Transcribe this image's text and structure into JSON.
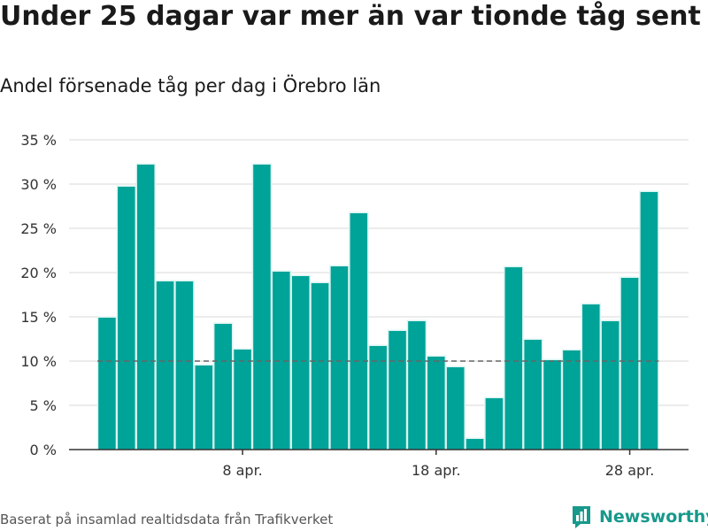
{
  "title": "Under 25 dagar var mer än var tionde tåg sent",
  "subtitle": "Andel försenade tåg per dag i Örebro län",
  "footer": "Baserat på insamlad realtidsdata från Trafikverket",
  "brand": "Newsworthy",
  "colors": {
    "bar": "#00a398",
    "bar_glow": "#d9f4f1",
    "reference_line": "#666666",
    "grid": "#e0e0e0",
    "brand": "#17998b"
  },
  "chart_data": {
    "type": "bar",
    "title": "Under 25 dagar var mer än var tionde tåg sent",
    "subtitle": "Andel försenade tåg per dag i Örebro län",
    "categories": [
      "1 apr.",
      "2 apr.",
      "3 apr.",
      "4 apr.",
      "5 apr.",
      "6 apr.",
      "7 apr.",
      "8 apr.",
      "9 apr.",
      "10 apr.",
      "11 apr.",
      "12 apr.",
      "13 apr.",
      "14 apr.",
      "15 apr.",
      "16 apr.",
      "17 apr.",
      "18 apr.",
      "19 apr.",
      "20 apr.",
      "21 apr.",
      "22 apr.",
      "23 apr.",
      "24 apr.",
      "25 apr.",
      "26 apr.",
      "27 apr.",
      "28 apr.",
      "29 apr."
    ],
    "values": [
      14.9,
      29.7,
      32.2,
      19.0,
      19.0,
      9.5,
      14.2,
      11.3,
      32.2,
      20.1,
      19.6,
      18.8,
      20.7,
      26.7,
      11.7,
      13.4,
      14.5,
      10.5,
      9.3,
      1.2,
      5.8,
      20.6,
      12.4,
      10.1,
      11.2,
      16.4,
      14.5,
      19.4,
      29.1
    ],
    "unit": "%",
    "ylim": [
      0,
      35
    ],
    "yticks": [
      0,
      5,
      10,
      15,
      20,
      25,
      30,
      35
    ],
    "ytick_labels": [
      "0 %",
      "5 %",
      "10 %",
      "15 %",
      "20 %",
      "25 %",
      "30 %",
      "35 %"
    ],
    "xtick_labels": [
      {
        "category_index": 7,
        "label": "8 apr."
      },
      {
        "category_index": 17,
        "label": "18 apr."
      },
      {
        "category_index": 27,
        "label": "28 apr."
      }
    ],
    "reference_line": 10,
    "grid": true,
    "legend": "none"
  }
}
